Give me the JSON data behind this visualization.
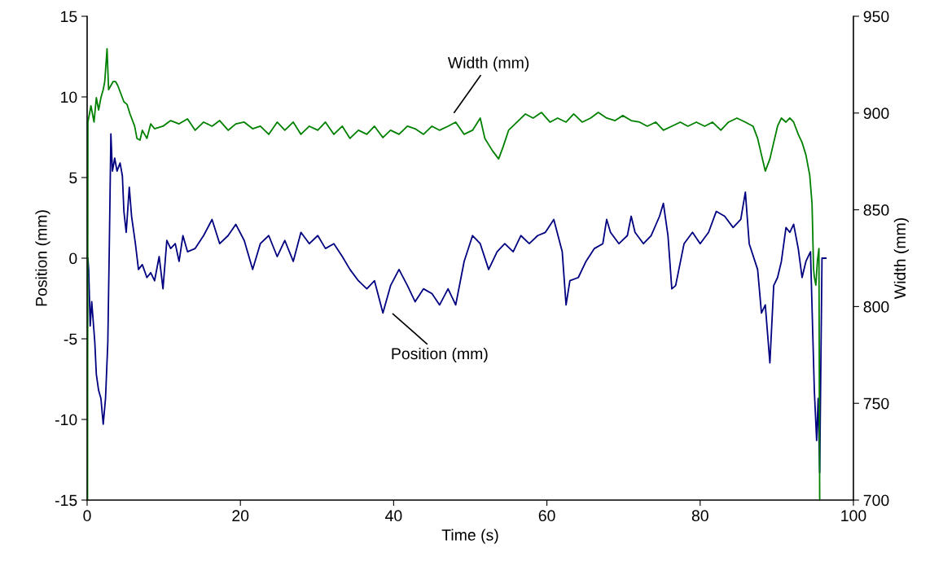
{
  "chart_data": {
    "type": "line",
    "xlabel": "Time (s)",
    "ylabel": "Position (mm)",
    "y2label": "Width (mm)",
    "xlim": [
      0,
      100
    ],
    "xticks": [
      0,
      20,
      40,
      60,
      80,
      100
    ],
    "ylim": [
      -15,
      15
    ],
    "yticks": [
      -15,
      -10,
      -5,
      0,
      5,
      10,
      15
    ],
    "y2lim": [
      700,
      950
    ],
    "y2ticks": [
      700,
      750,
      800,
      850,
      900,
      950
    ],
    "grid": false,
    "legend": false,
    "marker": "none",
    "line_style": "solid",
    "annotations": [
      "Width (mm)",
      "Position (mm)"
    ],
    "series": [
      {
        "color": "#000080",
        "x": [
          0.1,
          0.2,
          0.4,
          0.6,
          1.0,
          1.2,
          1.5,
          1.8,
          2.1,
          2.4,
          2.7,
          2.9,
          3.1,
          3.3,
          3.6,
          3.9,
          4.3,
          4.6,
          4.8,
          5.1,
          5.5,
          5.8,
          6.3,
          6.7,
          7.2,
          7.8,
          8.3,
          8.8,
          9.4,
          9.9,
          10.4,
          10.9,
          11.5,
          12.0,
          12.5,
          13.1,
          14.1,
          15.2,
          16.3,
          17.3,
          18.4,
          19.4,
          20.5,
          21.6,
          22.6,
          23.7,
          24.8,
          25.8,
          26.9,
          27.9,
          29.0,
          30.1,
          31.1,
          32.2,
          33.3,
          34.3,
          35.4,
          36.5,
          37.5,
          38.6,
          39.6,
          40.7,
          41.8,
          42.8,
          43.9,
          45.0,
          46.0,
          47.1,
          48.1,
          49.2,
          50.3,
          51.3,
          52.4,
          53.5,
          54.5,
          55.6,
          56.6,
          57.7,
          58.8,
          59.8,
          60.9,
          62.0,
          62.5,
          63.0,
          64.1,
          65.1,
          66.2,
          67.3,
          67.8,
          68.3,
          69.4,
          70.5,
          71.0,
          71.5,
          72.6,
          73.6,
          74.7,
          75.2,
          75.8,
          76.3,
          76.8,
          77.9,
          79.0,
          80.0,
          81.1,
          82.1,
          83.2,
          84.3,
          85.3,
          85.9,
          86.4,
          87.5,
          88.0,
          88.5,
          89.1,
          89.6,
          90.1,
          90.6,
          91.2,
          91.7,
          92.2,
          92.8,
          93.3,
          93.8,
          94.4,
          94.9,
          95.2,
          95.4,
          95.6,
          95.9,
          96.4
        ],
        "values": [
          0,
          -0.7,
          -4.2,
          -2.7,
          -5.2,
          -7.2,
          -8.2,
          -8.7,
          -10.3,
          -8.7,
          -5.2,
          0.9,
          7.7,
          5.4,
          6.2,
          5.4,
          5.9,
          5.1,
          2.9,
          1.6,
          4.4,
          2.6,
          0.9,
          -0.7,
          -0.4,
          -1.2,
          -0.9,
          -1.4,
          0.1,
          -1.9,
          1.1,
          0.6,
          0.9,
          -0.2,
          1.4,
          0.4,
          0.6,
          1.4,
          2.4,
          0.9,
          1.4,
          2.1,
          1.1,
          -0.7,
          0.9,
          1.4,
          0.1,
          1.1,
          -0.2,
          1.6,
          0.9,
          1.4,
          0.6,
          0.9,
          0.1,
          -0.7,
          -1.4,
          -1.9,
          -1.4,
          -3.4,
          -1.7,
          -0.7,
          -1.7,
          -2.7,
          -1.9,
          -2.2,
          -2.9,
          -1.9,
          -2.9,
          -0.2,
          1.4,
          0.9,
          -0.7,
          0.4,
          0.9,
          0.4,
          1.4,
          0.9,
          1.4,
          1.6,
          2.4,
          0.4,
          -2.9,
          -1.4,
          -1.2,
          -0.2,
          0.6,
          0.9,
          2.4,
          1.6,
          0.9,
          1.4,
          2.6,
          1.6,
          0.9,
          1.4,
          2.6,
          3.4,
          1.4,
          -1.9,
          -1.7,
          0.9,
          1.6,
          0.9,
          1.6,
          2.9,
          2.6,
          1.9,
          2.4,
          4.1,
          0.9,
          -0.7,
          -3.4,
          -2.9,
          -6.5,
          -1.7,
          -1.2,
          -0.2,
          1.9,
          1.6,
          2.1,
          0.6,
          -1.2,
          -0.2,
          0.4,
          -8.2,
          -11.3,
          -8.7,
          -13.3,
          0,
          0
        ]
      },
      {
        "color": "#008000",
        "axis": "y2",
        "x": [
          0.05,
          0.1,
          0.5,
          0.9,
          1.2,
          1.5,
          1.8,
          2.1,
          2.3,
          2.6,
          2.8,
          3.1,
          3.4,
          3.7,
          4.0,
          4.4,
          4.8,
          5.2,
          5.6,
          6.2,
          6.5,
          6.9,
          7.2,
          7.8,
          8.3,
          8.8,
          9.9,
          10.9,
          12.0,
          13.1,
          14.1,
          15.2,
          16.3,
          17.3,
          18.4,
          19.4,
          20.5,
          21.6,
          22.6,
          23.7,
          24.8,
          25.8,
          26.9,
          27.9,
          29.0,
          30.1,
          31.1,
          32.2,
          33.3,
          34.3,
          35.4,
          36.5,
          37.5,
          38.6,
          39.6,
          40.7,
          41.8,
          42.8,
          43.9,
          45.0,
          46.0,
          47.1,
          48.1,
          49.2,
          50.3,
          51.3,
          51.9,
          52.9,
          53.7,
          54.3,
          55.0,
          56.1,
          57.2,
          58.2,
          59.3,
          60.4,
          61.4,
          62.5,
          63.5,
          64.6,
          65.7,
          66.7,
          67.8,
          68.9,
          69.9,
          71.0,
          72.1,
          73.1,
          74.2,
          75.2,
          76.3,
          77.4,
          78.4,
          79.5,
          80.6,
          81.6,
          82.7,
          83.7,
          84.8,
          85.9,
          86.9,
          87.5,
          88.0,
          88.5,
          89.1,
          89.6,
          90.1,
          90.6,
          91.2,
          91.7,
          92.2,
          92.8,
          93.3,
          93.8,
          94.3,
          94.6,
          94.8,
          94.9,
          95.1,
          95.3,
          95.5,
          95.6
        ],
        "values": [
          700,
          895.3,
          903.7,
          895.3,
          907.9,
          901.6,
          907.9,
          912.1,
          916.3,
          933.2,
          912.1,
          914.2,
          916.3,
          916.3,
          914.2,
          910.0,
          905.8,
          904.5,
          899.5,
          893.2,
          886.9,
          886.0,
          891.1,
          886.9,
          894.4,
          891.9,
          893.2,
          896.1,
          894.4,
          897.0,
          891.1,
          895.3,
          893.2,
          896.1,
          891.1,
          894.4,
          895.3,
          891.9,
          893.2,
          889.0,
          895.3,
          891.1,
          895.3,
          889.0,
          893.2,
          891.1,
          895.3,
          889.0,
          893.2,
          886.9,
          891.1,
          889.0,
          893.2,
          887.3,
          891.1,
          889.0,
          893.2,
          891.9,
          889.0,
          893.2,
          891.1,
          893.2,
          895.3,
          889.0,
          891.1,
          897.4,
          886.9,
          880.5,
          876.3,
          882.7,
          891.1,
          895.3,
          899.5,
          897.4,
          900.3,
          895.3,
          897.4,
          895.3,
          899.5,
          895.3,
          897.4,
          900.3,
          897.4,
          896.1,
          898.7,
          896.1,
          895.3,
          893.2,
          895.3,
          891.1,
          893.2,
          895.3,
          893.2,
          895.3,
          893.2,
          895.3,
          891.1,
          895.3,
          897.4,
          895.3,
          893.2,
          886.9,
          878.4,
          870.0,
          876.3,
          884.8,
          893.2,
          897.4,
          895.3,
          897.4,
          895.3,
          889.0,
          884.8,
          878.4,
          867.9,
          853.2,
          819.5,
          815.3,
          811.1,
          823.7,
          830.0,
          700
        ]
      }
    ]
  }
}
